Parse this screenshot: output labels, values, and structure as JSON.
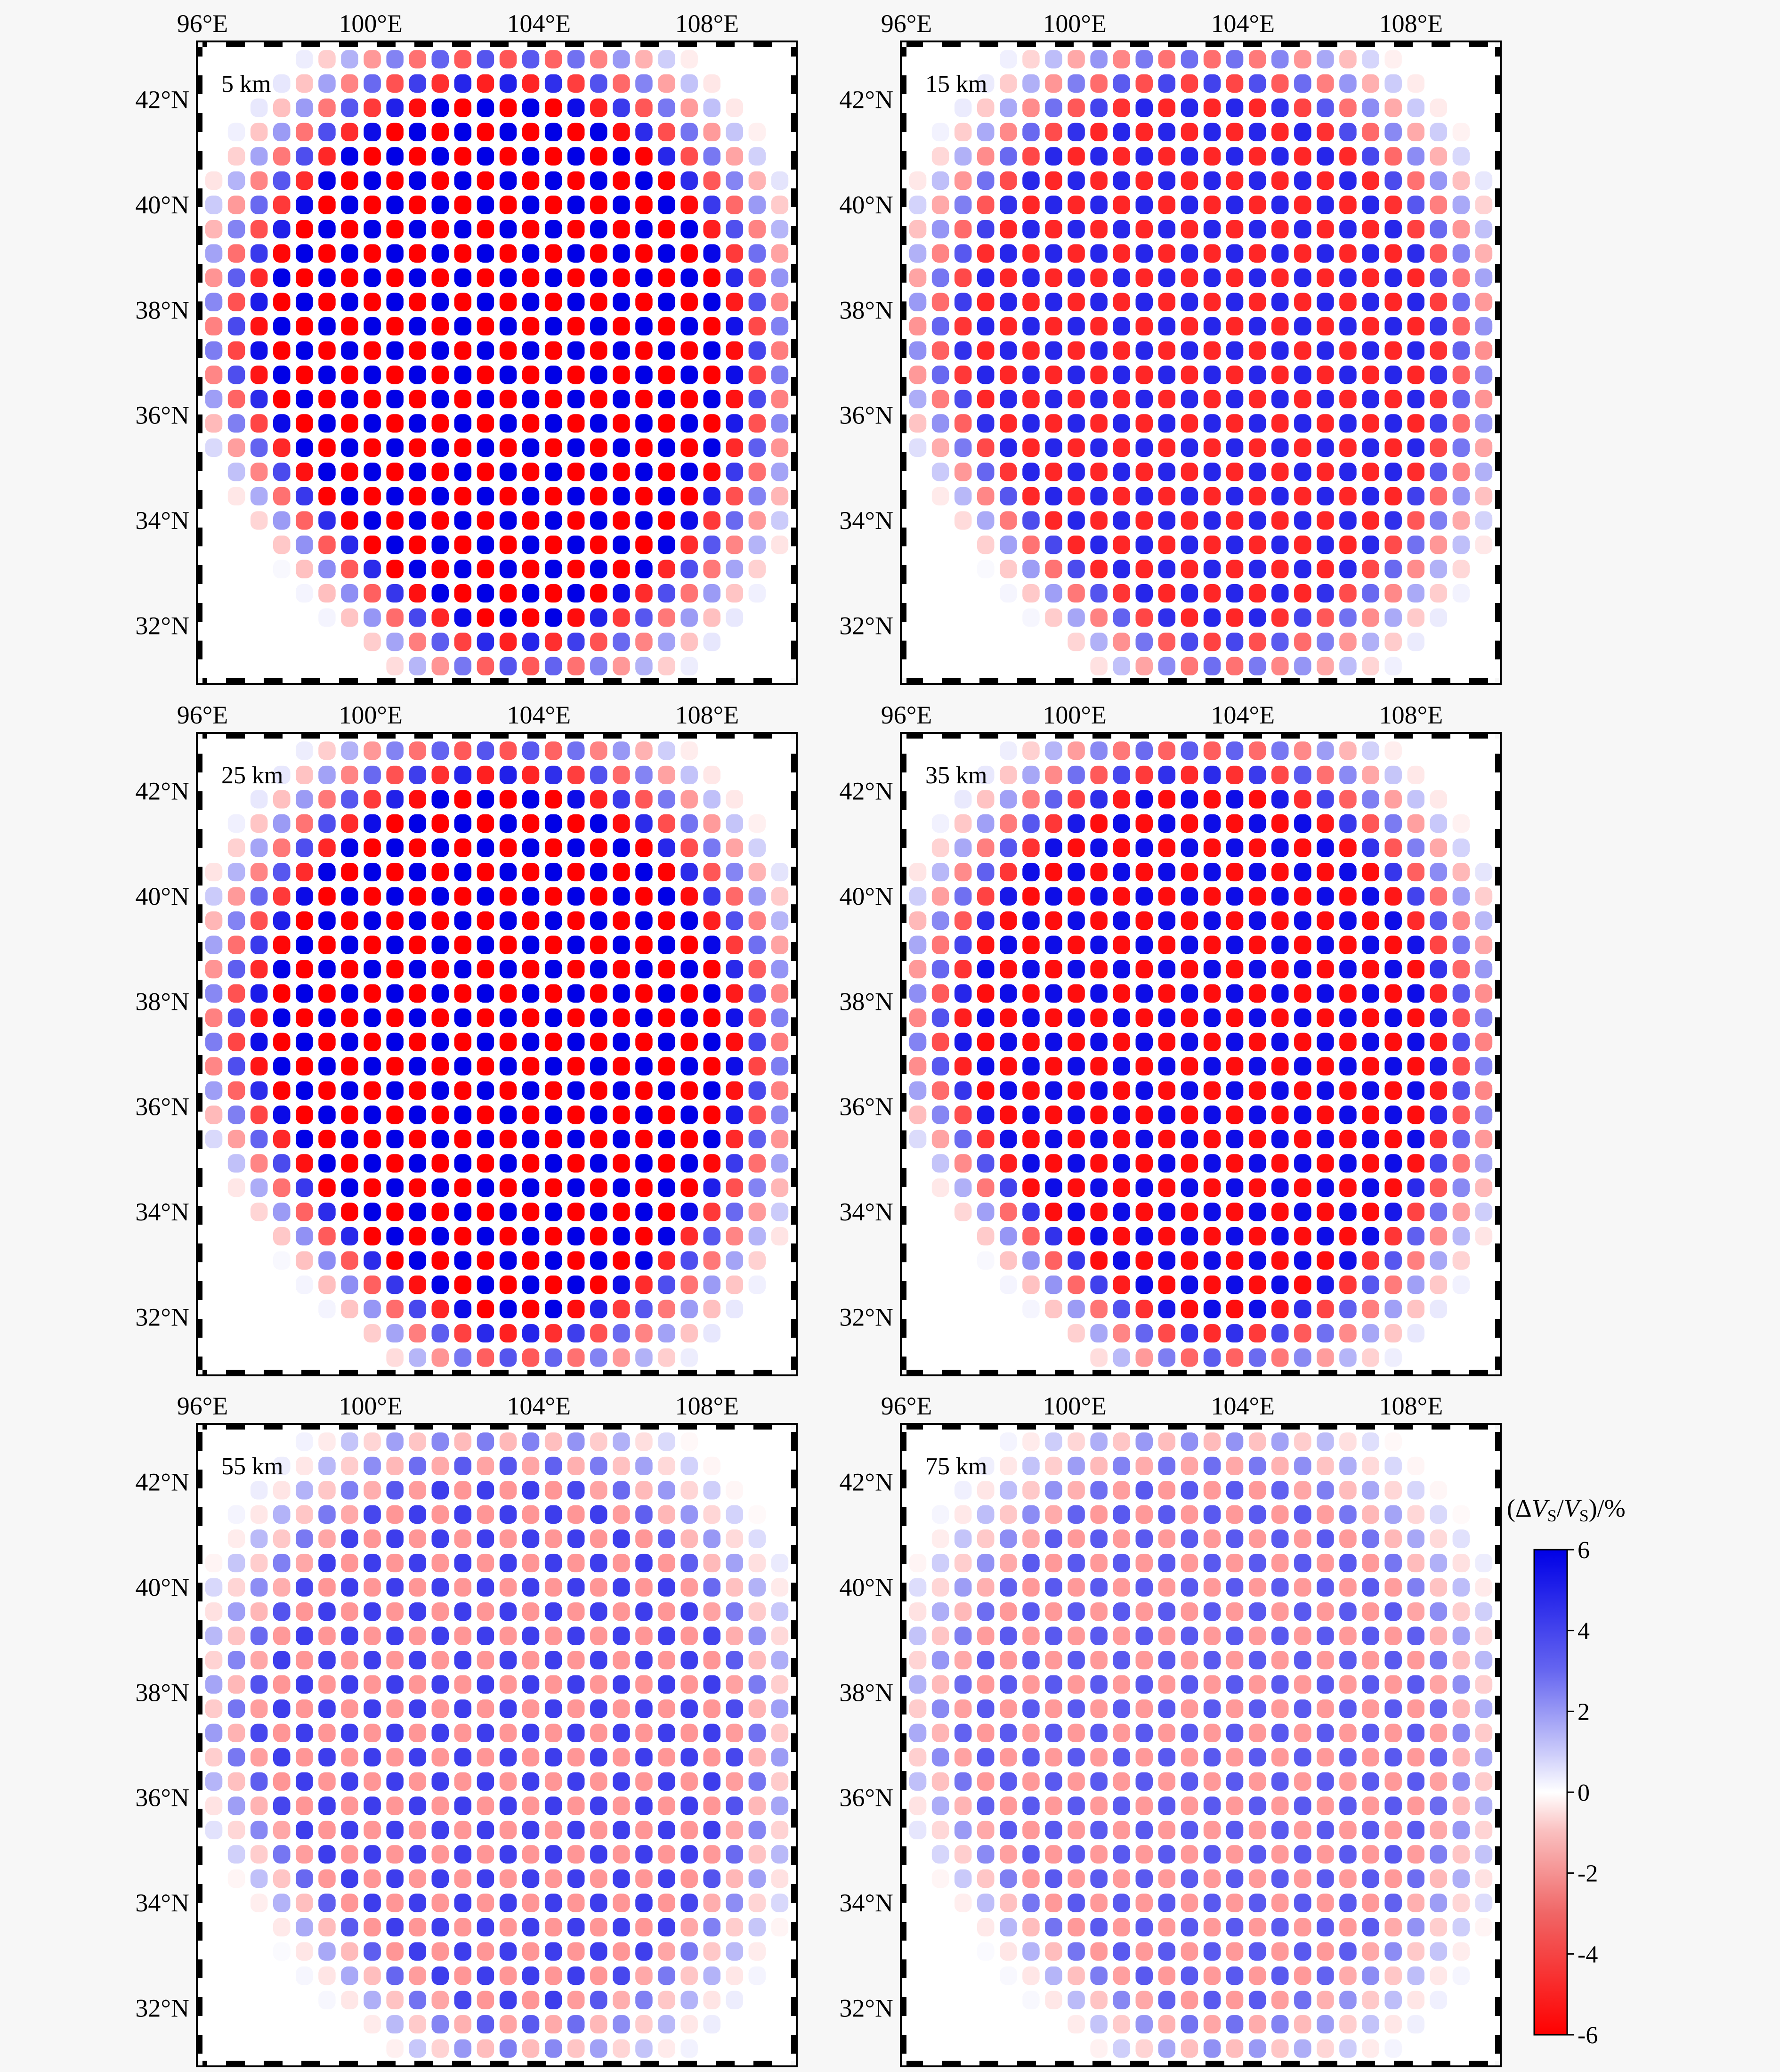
{
  "figure": {
    "panels": [
      {
        "depth_label": "5 km",
        "amplitude": 1.0,
        "bias": 0.0
      },
      {
        "depth_label": "15 km",
        "amplitude": 0.85,
        "bias": 0.0
      },
      {
        "depth_label": "25 km",
        "amplitude": 1.0,
        "bias": 0.0
      },
      {
        "depth_label": "35 km",
        "amplitude": 0.95,
        "bias": 0.0
      },
      {
        "depth_label": "55 km",
        "amplitude": 0.55,
        "bias": 0.35
      },
      {
        "depth_label": "75 km",
        "amplitude": 0.5,
        "bias": 0.25
      }
    ],
    "x_axis": {
      "ticks": [
        "96°E",
        "100°E",
        "104°E",
        "108°E"
      ],
      "range": [
        96,
        110
      ]
    },
    "y_axis": {
      "ticks": [
        "42°N",
        "40°N",
        "38°N",
        "36°N",
        "34°N",
        "32°N"
      ],
      "range": [
        31,
        43
      ]
    },
    "colorbar": {
      "title_prefix": "(Δ",
      "title_v": "V",
      "title_sub": "S",
      "title_sep": "/",
      "title_suffix": ")/%",
      "ticks": [
        "6",
        "4",
        "2",
        "0",
        "-2",
        "-4",
        "-6"
      ],
      "range": [
        -6,
        6
      ],
      "positive_color": "#0000e6",
      "negative_color": "#ff0000",
      "zero_color": "#ffffff"
    }
  }
}
